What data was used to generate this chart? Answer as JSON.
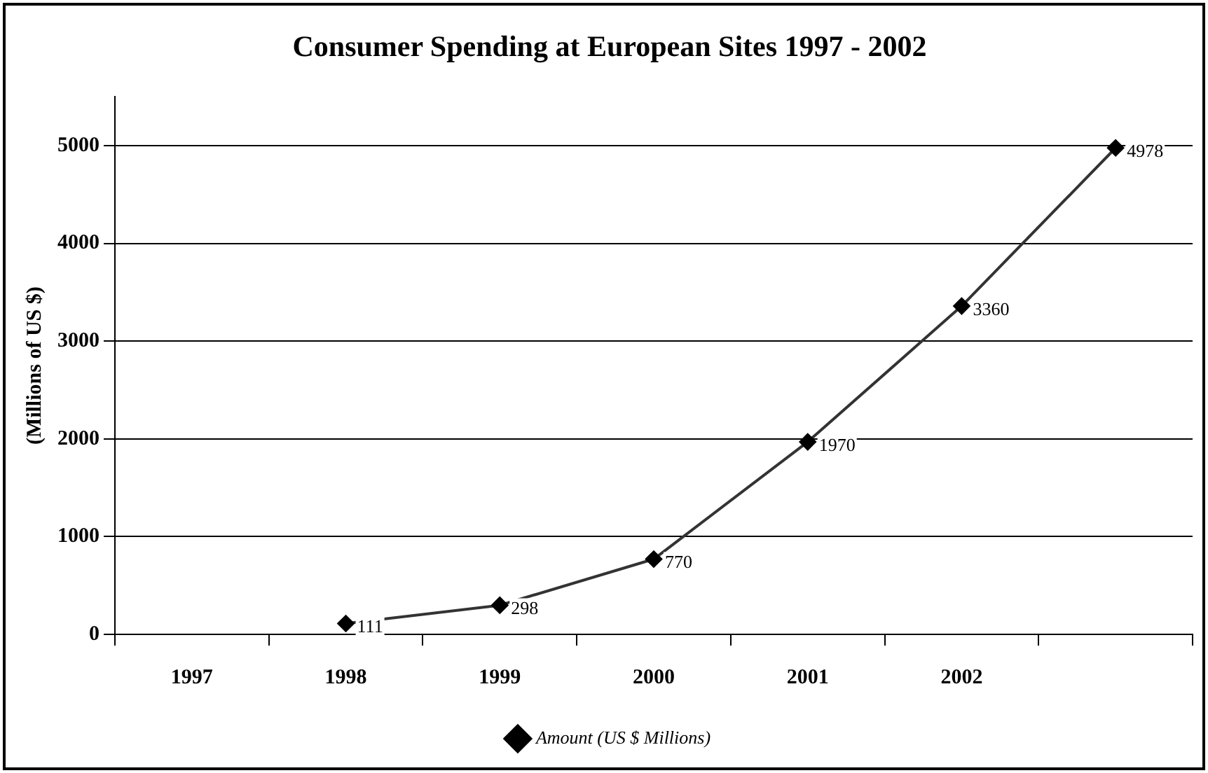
{
  "chart_data": {
    "type": "line",
    "title": "Consumer Spending at European Sites 1997 - 2002",
    "ylabel": "(Millions of US $)",
    "categories": [
      "1997",
      "1998",
      "1999",
      "2000",
      "2001",
      "2002",
      null
    ],
    "series": [
      {
        "name": "Amount (US $ Millions)",
        "color": "#000000",
        "values": [
          null,
          111,
          298,
          770,
          1970,
          3360,
          4978
        ]
      }
    ],
    "ylim": [
      0,
      5500
    ],
    "yticks": [
      0,
      1000,
      2000,
      3000,
      4000,
      5000
    ],
    "grid": "y",
    "legend": "bottom",
    "marker": "diamond",
    "line_style": "solid",
    "data_labels": true
  }
}
